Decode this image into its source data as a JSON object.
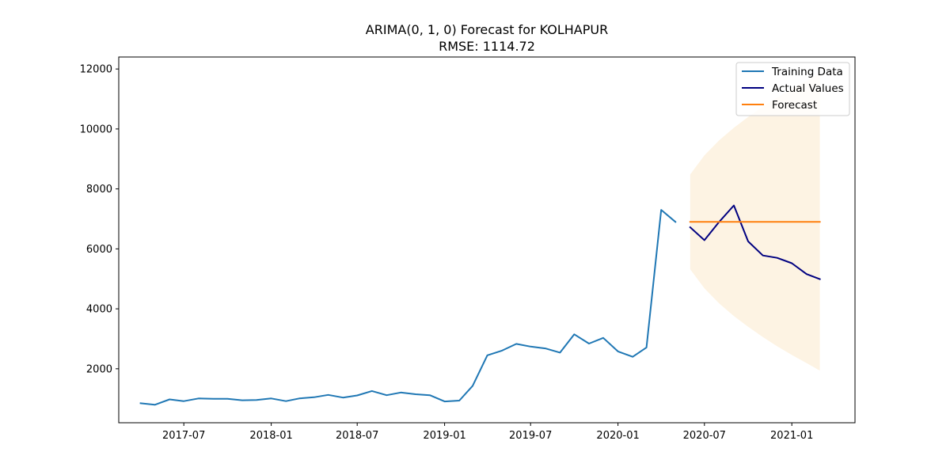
{
  "chart_data": {
    "type": "line",
    "title": "ARIMA(0, 1, 0) Forecast for KOLHAPUR",
    "subtitle": "RMSE: 1114.72",
    "xlabel": "",
    "ylabel": "",
    "ylim": [
      200,
      12400
    ],
    "xlim": [
      "2017-02-14",
      "2021-05-14"
    ],
    "x_ticks": [
      "2017-07",
      "2018-01",
      "2018-07",
      "2019-01",
      "2019-07",
      "2020-01",
      "2020-07",
      "2021-01"
    ],
    "y_ticks": [
      2000,
      4000,
      6000,
      8000,
      10000,
      12000
    ],
    "grid": false,
    "legend_position": "top-right",
    "series": [
      {
        "name": "Training Data",
        "color": "#1f77b4",
        "points": [
          [
            "2017-04-01",
            850
          ],
          [
            "2017-05-01",
            800
          ],
          [
            "2017-06-01",
            980
          ],
          [
            "2017-07-01",
            920
          ],
          [
            "2017-08-01",
            1010
          ],
          [
            "2017-09-01",
            1000
          ],
          [
            "2017-10-01",
            1000
          ],
          [
            "2017-11-01",
            950
          ],
          [
            "2017-12-01",
            960
          ],
          [
            "2018-01-01",
            1010
          ],
          [
            "2018-02-01",
            920
          ],
          [
            "2018-03-01",
            1010
          ],
          [
            "2018-04-01",
            1050
          ],
          [
            "2018-05-01",
            1130
          ],
          [
            "2018-06-01",
            1040
          ],
          [
            "2018-07-01",
            1110
          ],
          [
            "2018-08-01",
            1260
          ],
          [
            "2018-09-01",
            1120
          ],
          [
            "2018-10-01",
            1210
          ],
          [
            "2018-11-01",
            1150
          ],
          [
            "2018-12-01",
            1120
          ],
          [
            "2019-01-01",
            910
          ],
          [
            "2019-02-01",
            940
          ],
          [
            "2019-03-01",
            1430
          ],
          [
            "2019-04-01",
            2450
          ],
          [
            "2019-05-01",
            2600
          ],
          [
            "2019-06-01",
            2830
          ],
          [
            "2019-07-01",
            2740
          ],
          [
            "2019-08-01",
            2680
          ],
          [
            "2019-09-01",
            2540
          ],
          [
            "2019-10-01",
            3150
          ],
          [
            "2019-11-01",
            2840
          ],
          [
            "2019-12-01",
            3030
          ],
          [
            "2020-01-01",
            2580
          ],
          [
            "2020-02-01",
            2400
          ],
          [
            "2020-03-01",
            2710
          ],
          [
            "2020-04-01",
            7300
          ],
          [
            "2020-05-01",
            6900
          ]
        ]
      },
      {
        "name": "Actual Values",
        "color": "#000080",
        "points": [
          [
            "2020-06-01",
            6720
          ],
          [
            "2020-07-01",
            6290
          ],
          [
            "2020-08-01",
            6900
          ],
          [
            "2020-09-01",
            7450
          ],
          [
            "2020-10-01",
            6250
          ],
          [
            "2020-11-01",
            5780
          ],
          [
            "2020-12-01",
            5700
          ],
          [
            "2021-01-01",
            5520
          ],
          [
            "2021-02-01",
            5160
          ],
          [
            "2021-03-01",
            4990
          ]
        ]
      },
      {
        "name": "Forecast",
        "color": "#ff7f0e",
        "points": [
          [
            "2020-06-01",
            6900
          ],
          [
            "2020-07-01",
            6900
          ],
          [
            "2020-08-01",
            6900
          ],
          [
            "2020-09-01",
            6900
          ],
          [
            "2020-10-01",
            6900
          ],
          [
            "2020-11-01",
            6900
          ],
          [
            "2020-12-01",
            6900
          ],
          [
            "2021-01-01",
            6900
          ],
          [
            "2021-02-01",
            6900
          ],
          [
            "2021-03-01",
            6900
          ]
        ]
      }
    ],
    "confidence_band": {
      "color": "#fdf3e3",
      "upper": [
        [
          "2020-06-01",
          8480
        ],
        [
          "2020-07-01",
          9120
        ],
        [
          "2020-08-01",
          9620
        ],
        [
          "2020-09-01",
          10040
        ],
        [
          "2020-10-01",
          10400
        ],
        [
          "2020-11-01",
          10740
        ],
        [
          "2020-12-01",
          11050
        ],
        [
          "2021-01-01",
          11340
        ],
        [
          "2021-02-01",
          11610
        ],
        [
          "2021-03-01",
          11860
        ]
      ],
      "lower": [
        [
          "2020-06-01",
          5320
        ],
        [
          "2020-07-01",
          4680
        ],
        [
          "2020-08-01",
          4180
        ],
        [
          "2020-09-01",
          3760
        ],
        [
          "2020-10-01",
          3400
        ],
        [
          "2020-11-01",
          3060
        ],
        [
          "2020-12-01",
          2750
        ],
        [
          "2021-01-01",
          2460
        ],
        [
          "2021-02-01",
          2190
        ],
        [
          "2021-03-01",
          1940
        ]
      ]
    }
  }
}
